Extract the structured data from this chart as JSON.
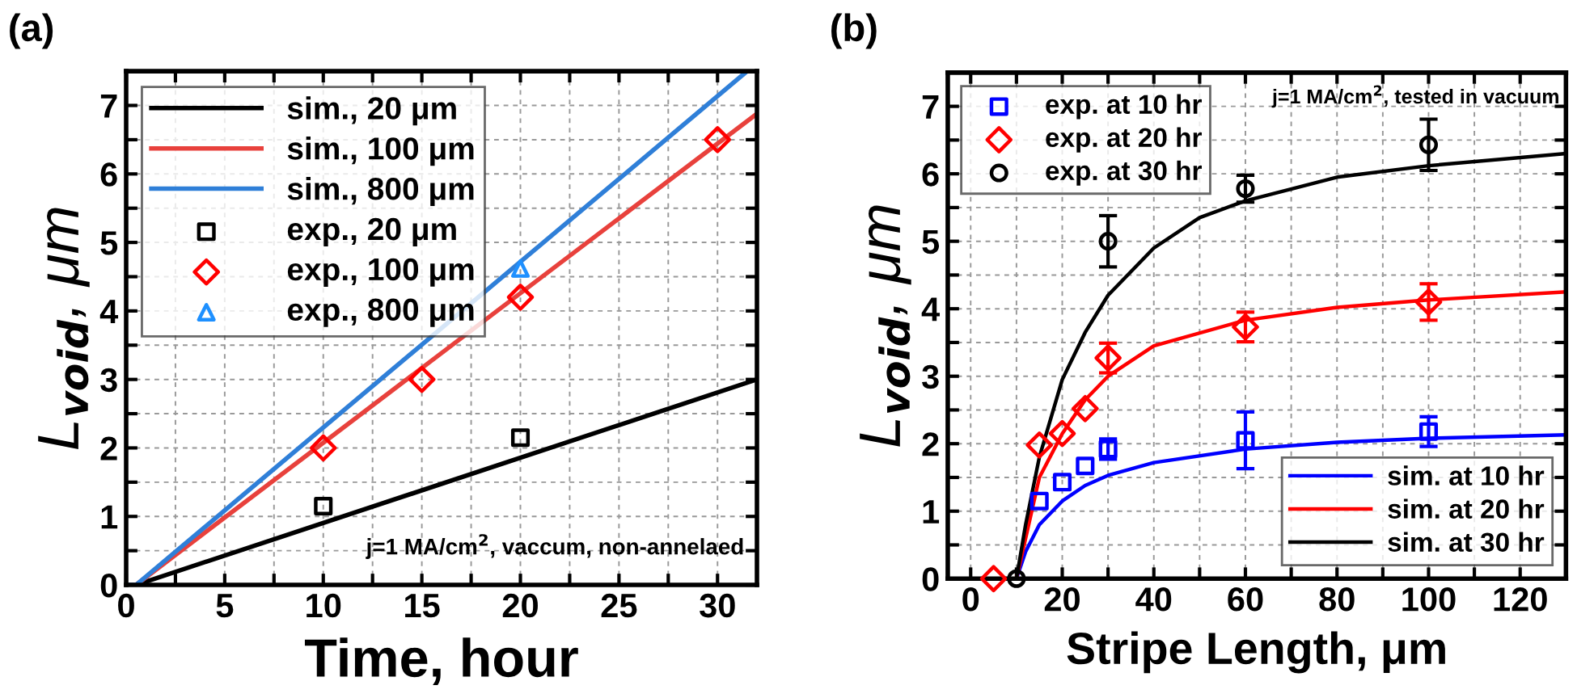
{
  "chart_data": [
    {
      "type": "line",
      "title": "(a)",
      "xlabel": "Time, hour",
      "ylabel": "L$_{void}$, μm",
      "xlim": [
        0,
        32
      ],
      "ylim": [
        0,
        7.5
      ],
      "xticks": [
        0,
        {
          "value": 2.5,
          "label": null
        },
        5,
        {
          "value": 7.5,
          "label": null
        },
        10,
        {
          "value": 12.5,
          "label": null
        },
        15,
        {
          "value": 17.5,
          "label": null
        },
        20,
        {
          "value": 22.5,
          "label": null
        },
        25,
        {
          "value": 27.5,
          "label": null
        },
        30
      ],
      "yticks": [
        0,
        {
          "value": 0.5,
          "label": null
        },
        1,
        {
          "value": 1.5,
          "label": null
        },
        2,
        {
          "value": 2.5,
          "label": null
        },
        3,
        {
          "value": 3.5,
          "label": null
        },
        4,
        {
          "value": 4.5,
          "label": null
        },
        5,
        {
          "value": 5.5,
          "label": null
        },
        6,
        {
          "value": 6.5,
          "label": null
        },
        7
      ],
      "grid": true,
      "legend": [
        "top left"
      ],
      "annotations": [
        "j=1 MA/cm$^{2}$, vaccum, non-annelaed"
      ],
      "series": [
        {
          "name": "sim., 20 μm",
          "color": "#000000",
          "x": [
            0,
            0.5,
            32
          ],
          "values": [
            0,
            0,
            3.0
          ]
        },
        {
          "name": "sim., 100 μm",
          "color": "#e8413c",
          "x": [
            0,
            0.5,
            32
          ],
          "values": [
            0,
            0,
            6.88
          ]
        },
        {
          "name": "sim., 800 μm",
          "color": "#2f7fd8",
          "x": [
            0,
            0.5,
            31.5
          ],
          "values": [
            0,
            0,
            7.5
          ]
        },
        {
          "name": "exp., 20 μm",
          "type": "scatter",
          "marker": "square",
          "color": "#000000",
          "x": [
            10,
            20
          ],
          "values": [
            1.15,
            2.15
          ]
        },
        {
          "name": "exp., 100 μm",
          "type": "scatter",
          "marker": "diamond",
          "color": "#ff0000",
          "x": [
            10,
            15,
            20,
            30
          ],
          "values": [
            2.0,
            3.0,
            4.2,
            6.5
          ]
        },
        {
          "name": "exp., 800 μm",
          "type": "scatter",
          "marker": "triangle",
          "color": "#1e90ff",
          "x": [
            20
          ],
          "values": [
            4.62
          ]
        }
      ]
    },
    {
      "type": "line",
      "title": "(b)",
      "xlabel": "Stripe Length, μm",
      "ylabel": "L$_{void}$, μm",
      "xlim": [
        -5,
        130
      ],
      "ylim": [
        0,
        7.5
      ],
      "xticks": [
        {
          "value": -5,
          "label": null
        },
        0,
        {
          "value": 10,
          "label": null
        },
        20,
        {
          "value": 30,
          "label": null
        },
        40,
        {
          "value": 50,
          "label": null
        },
        60,
        {
          "value": 70,
          "label": null
        },
        80,
        {
          "value": 90,
          "label": null
        },
        100,
        {
          "value": 110,
          "label": null
        },
        120
      ],
      "yticks": [
        0,
        {
          "value": 0.5,
          "label": null
        },
        1,
        {
          "value": 1.5,
          "label": null
        },
        2,
        {
          "value": 2.5,
          "label": null
        },
        3,
        {
          "value": 3.5,
          "label": null
        },
        4,
        {
          "value": 4.5,
          "label": null
        },
        5,
        {
          "value": 5.5,
          "label": null
        },
        6,
        {
          "value": 6.5,
          "label": null
        },
        7
      ],
      "grid": true,
      "legend": [
        "top left",
        "bottom right"
      ],
      "annotations": [
        "j=1 MA/cm$^{2}$, tested in vacuum"
      ],
      "series": [
        {
          "name": "exp. at 10 hr",
          "type": "scatter",
          "marker": "square",
          "color": "#0000ff",
          "x": [
            15,
            20,
            25,
            30,
            60,
            100
          ],
          "values": [
            1.15,
            1.43,
            1.67,
            1.92,
            2.05,
            2.18
          ],
          "errors": [
            null,
            null,
            null,
            0.15,
            0.42,
            0.22
          ]
        },
        {
          "name": "exp. at 20 hr",
          "type": "scatter",
          "marker": "diamond",
          "color": "#ff0000",
          "x": [
            5,
            15,
            20,
            25,
            30,
            60,
            100
          ],
          "values": [
            0,
            1.98,
            2.15,
            2.52,
            3.27,
            3.73,
            4.1
          ],
          "errors": [
            null,
            null,
            null,
            null,
            0.22,
            0.22,
            0.27
          ]
        },
        {
          "name": "exp. at 30 hr",
          "type": "scatter",
          "marker": "circle",
          "color": "#000000",
          "x": [
            10,
            30,
            60,
            100
          ],
          "values": [
            0,
            5.0,
            5.78,
            6.43
          ],
          "errors": [
            null,
            0.38,
            0.2,
            0.38
          ]
        },
        {
          "name": "sim. at 10 hr",
          "color": "#0000ff",
          "x": [
            10,
            12,
            15,
            20,
            25,
            30,
            40,
            60,
            80,
            100,
            130
          ],
          "values": [
            0,
            0.4,
            0.8,
            1.15,
            1.38,
            1.53,
            1.72,
            1.92,
            2.02,
            2.08,
            2.13
          ]
        },
        {
          "name": "sim. at 20 hr",
          "color": "#ff0000",
          "x": [
            10,
            12,
            15,
            20,
            25,
            30,
            40,
            60,
            80,
            100,
            130
          ],
          "values": [
            0,
            0.6,
            1.5,
            2.15,
            2.65,
            3.0,
            3.45,
            3.83,
            4.02,
            4.13,
            4.25
          ]
        },
        {
          "name": "sim. at 30 hr",
          "color": "#000000",
          "x": [
            10,
            12,
            15,
            20,
            25,
            30,
            40,
            50,
            60,
            80,
            100,
            130
          ],
          "values": [
            0,
            0.8,
            1.8,
            2.95,
            3.65,
            4.2,
            4.9,
            5.35,
            5.6,
            5.95,
            6.12,
            6.3
          ]
        }
      ]
    }
  ]
}
